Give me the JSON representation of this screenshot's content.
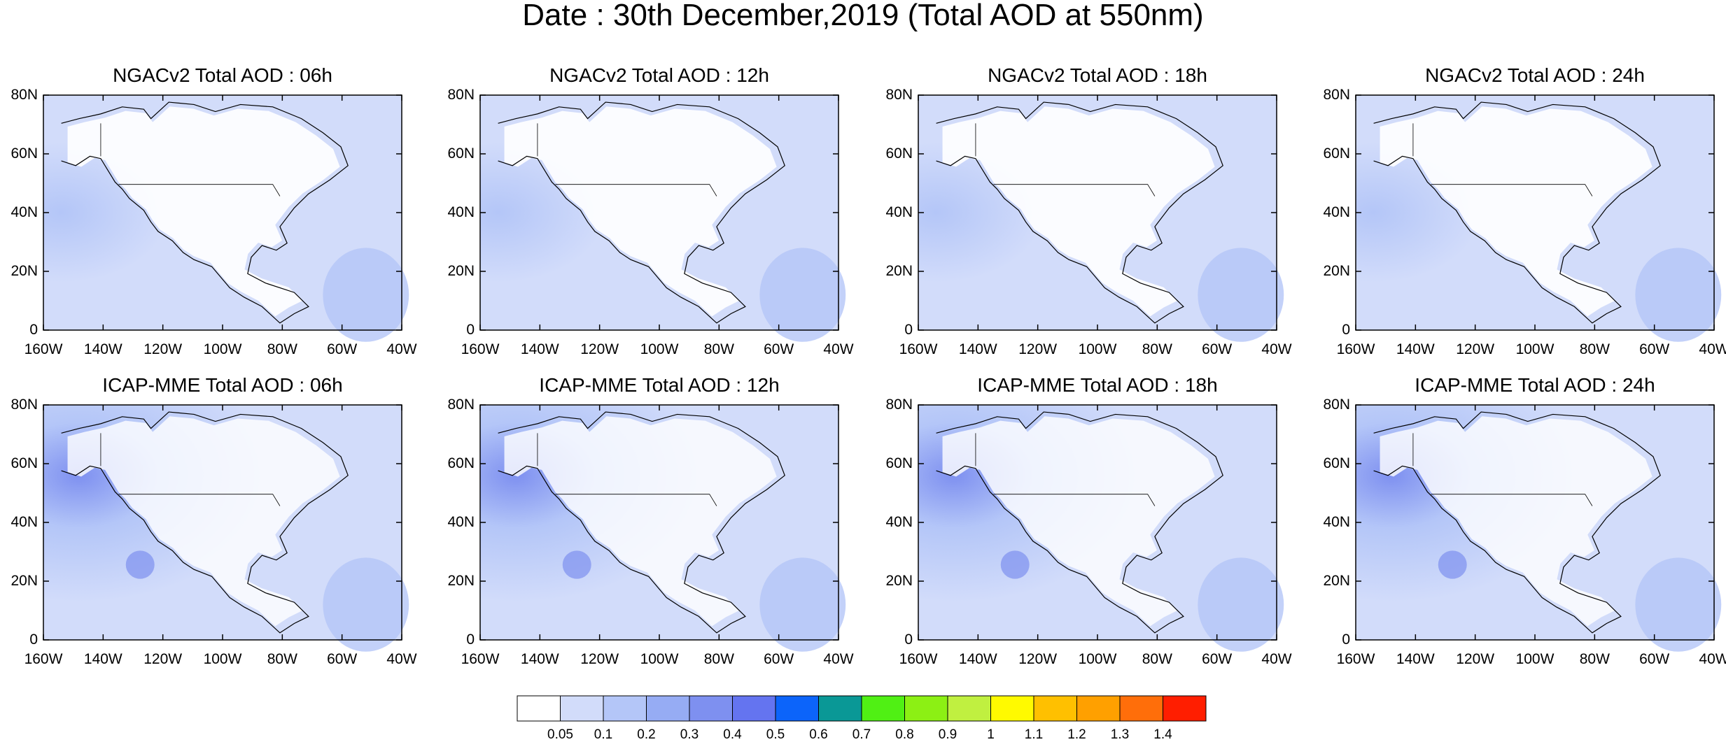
{
  "title": "Date : 30th December,2019 (Total AOD at 550nm)",
  "panels": [
    {
      "title": "NGACv2 Total AOD : 06h",
      "model": "ngac"
    },
    {
      "title": "NGACv2 Total AOD : 12h",
      "model": "ngac"
    },
    {
      "title": "NGACv2 Total AOD : 18h",
      "model": "ngac"
    },
    {
      "title": "NGACv2 Total AOD : 24h",
      "model": "ngac"
    },
    {
      "title": "ICAP-MME Total AOD : 06h",
      "model": "icap"
    },
    {
      "title": "ICAP-MME Total AOD : 12h",
      "model": "icap"
    },
    {
      "title": "ICAP-MME Total AOD : 18h",
      "model": "icap"
    },
    {
      "title": "ICAP-MME Total AOD : 24h",
      "model": "icap"
    }
  ],
  "y_ticks": [
    "80N",
    "60N",
    "40N",
    "20N",
    "0"
  ],
  "x_ticks": [
    "160W",
    "140W",
    "120W",
    "100W",
    "80W",
    "60W",
    "40W"
  ],
  "colorbar": {
    "labels": [
      "0.05",
      "0.1",
      "0.2",
      "0.3",
      "0.4",
      "0.5",
      "0.6",
      "0.7",
      "0.8",
      "0.9",
      "1",
      "1.1",
      "1.2",
      "1.3",
      "1.4"
    ],
    "colors": [
      "#ffffff",
      "#d2dcfa",
      "#b4c6f8",
      "#96acf4",
      "#7e90f0",
      "#6474f0",
      "#0c64fa",
      "#0a9896",
      "#50f014",
      "#8cf014",
      "#c0f040",
      "#fffa00",
      "#ffc000",
      "#ffa000",
      "#ff6e0a",
      "#ff1e00"
    ]
  }
}
